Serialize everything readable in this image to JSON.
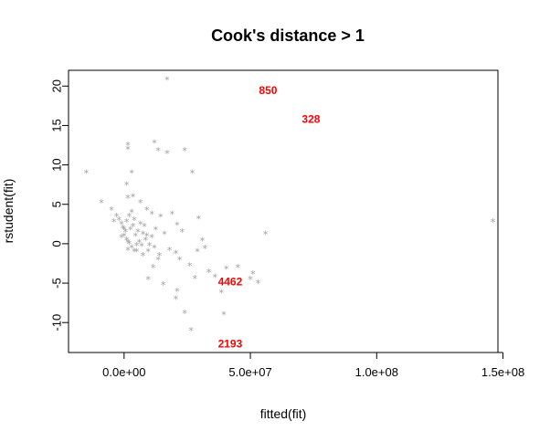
{
  "chart_data": {
    "type": "scatter",
    "title": "Cook's distance > 1",
    "xlabel": "fitted(fit)",
    "ylabel": "rstudent(fit)",
    "xlim": [
      -22000000,
      148000000
    ],
    "ylim": [
      -13.8,
      22
    ],
    "x_ticks": [
      0,
      50000000,
      100000000,
      150000000
    ],
    "x_tick_labels": [
      "0.0e+00",
      "5.0e+07",
      "1.0e+08",
      "1.5e+08"
    ],
    "y_ticks": [
      -10,
      -5,
      0,
      5,
      10,
      15,
      20
    ],
    "y_tick_labels": [
      "-10",
      "-5",
      "0",
      "5",
      "10",
      "15",
      "20"
    ],
    "marker": "*",
    "point_color": "#a0a0a0",
    "label_color": "#ff0000",
    "points": [
      [
        17000000,
        20.8
      ],
      [
        -15000000,
        9.0
      ],
      [
        1500000,
        12.5
      ],
      [
        1500000,
        12
      ],
      [
        12000000,
        12.8
      ],
      [
        13500000,
        11.8
      ],
      [
        17000000,
        11.5
      ],
      [
        24000000,
        11.8
      ],
      [
        27000000,
        9.0
      ],
      [
        3000000,
        9.0
      ],
      [
        -9000000,
        5.2
      ],
      [
        1000000,
        7.5
      ],
      [
        1500000,
        5.8
      ],
      [
        3500000,
        6.0
      ],
      [
        6500000,
        5.2
      ],
      [
        9000000,
        4.3
      ],
      [
        11000000,
        3.8
      ],
      [
        14500000,
        3.4
      ],
      [
        19000000,
        3.8
      ],
      [
        29500000,
        3.2
      ],
      [
        56000000,
        1.2
      ],
      [
        146000000,
        2.8
      ],
      [
        -5000000,
        4.3
      ],
      [
        -3000000,
        3.5
      ],
      [
        -4000000,
        2.8
      ],
      [
        -2000000,
        3.0
      ],
      [
        -1000000,
        2.5
      ],
      [
        8000000,
        2.2
      ],
      [
        12500000,
        1.8
      ],
      [
        16000000,
        1.2
      ],
      [
        21000000,
        2.4
      ],
      [
        23000000,
        1.5
      ],
      [
        31000000,
        0.4
      ],
      [
        32000000,
        -0.6
      ],
      [
        20500000,
        -1.2
      ],
      [
        18000000,
        -0.8
      ],
      [
        22000000,
        -2.0
      ],
      [
        26000000,
        -2.8
      ],
      [
        29000000,
        -1.0
      ],
      [
        33500000,
        -3.6
      ],
      [
        36000000,
        -4.2
      ],
      [
        40500000,
        -3.2
      ],
      [
        45000000,
        -3.0
      ],
      [
        50000000,
        -4.5
      ],
      [
        51000000,
        -3.8
      ],
      [
        53000000,
        -5.0
      ],
      [
        38500000,
        -6.2
      ],
      [
        15500000,
        -5.2
      ],
      [
        9500000,
        -4.5
      ],
      [
        21000000,
        -6.0
      ],
      [
        20500000,
        -7.0
      ],
      [
        24000000,
        -8.8
      ],
      [
        39500000,
        -9.0
      ],
      [
        26500000,
        -11.0
      ],
      [
        11500000,
        -3.0
      ],
      [
        13500000,
        -2.0
      ],
      [
        7500000,
        -1.5
      ],
      [
        5000000,
        -1.0
      ],
      [
        28000000,
        -4.4
      ],
      [
        0,
        1.0
      ],
      [
        1000000,
        0.5
      ],
      [
        2000000,
        0
      ],
      [
        3000000,
        -0.5
      ],
      [
        4000000,
        -1.0
      ],
      [
        -1000000,
        0.8
      ],
      [
        500000,
        1.5
      ],
      [
        2500000,
        1.8
      ],
      [
        4500000,
        1.0
      ],
      [
        6000000,
        0.2
      ],
      [
        7000000,
        -0.3
      ],
      [
        1500000,
        -0.8
      ],
      [
        3500000,
        2.2
      ],
      [
        5500000,
        1.5
      ],
      [
        8500000,
        0.5
      ],
      [
        10000000,
        -0.2
      ],
      [
        9000000,
        1.0
      ],
      [
        -500000,
        2.0
      ],
      [
        1000000,
        2.8
      ],
      [
        2000000,
        3.5
      ],
      [
        4000000,
        3.0
      ],
      [
        6500000,
        2.5
      ],
      [
        11000000,
        0.8
      ],
      [
        12000000,
        -0.5
      ],
      [
        14000000,
        -1.5
      ],
      [
        3000000,
        4.0
      ],
      [
        0,
        1.8
      ],
      [
        1500000,
        0.2
      ],
      [
        5000000,
        -0.2
      ],
      [
        7500000,
        1.2
      ],
      [
        9500000,
        -1.0
      ]
    ],
    "labeled_points": [
      {
        "label": "850",
        "x": 57000000,
        "y": 19.5
      },
      {
        "label": "328",
        "x": 74000000,
        "y": 15.8
      },
      {
        "label": "4462",
        "x": 42000000,
        "y": -4.8
      },
      {
        "label": "2193",
        "x": 42000000,
        "y": -12.7
      }
    ]
  }
}
